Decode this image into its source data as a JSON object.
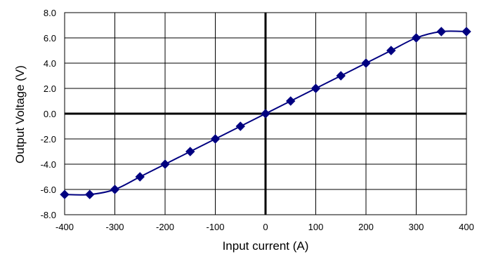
{
  "chart_data": {
    "type": "line",
    "title": "",
    "xlabel": "Input current (A)",
    "ylabel": "Output Voltage (V)",
    "xlim": [
      -400,
      400
    ],
    "ylim": [
      -8,
      8
    ],
    "xticks": [
      -400,
      -300,
      -200,
      -100,
      0,
      100,
      200,
      300,
      400
    ],
    "xtick_labels": [
      "-400",
      "-300",
      "-200",
      "-100",
      "0",
      "100",
      "200",
      "300",
      "400"
    ],
    "yticks": [
      -8,
      -6,
      -4,
      -2,
      0,
      2,
      4,
      6,
      8
    ],
    "ytick_labels": [
      "-8.0",
      "-6.0",
      "-4.0",
      "-2.0",
      "0.0",
      "2.0",
      "4.0",
      "6.0",
      "8.0"
    ],
    "grid": true,
    "legend": "none",
    "series": [
      {
        "marker": "diamond",
        "smooth": true,
        "color": "#000080",
        "points": [
          [
            -400,
            -6.4
          ],
          [
            -350,
            -6.4
          ],
          [
            -300,
            -6.0
          ],
          [
            -250,
            -5.0
          ],
          [
            -200,
            -4.0
          ],
          [
            -150,
            -3.0
          ],
          [
            -100,
            -2.0
          ],
          [
            -50,
            -1.0
          ],
          [
            0,
            0.0
          ],
          [
            50,
            1.0
          ],
          [
            100,
            2.0
          ],
          [
            150,
            3.0
          ],
          [
            200,
            4.0
          ],
          [
            250,
            5.0
          ],
          [
            300,
            6.0
          ],
          [
            350,
            6.5
          ],
          [
            400,
            6.5
          ]
        ]
      }
    ]
  }
}
